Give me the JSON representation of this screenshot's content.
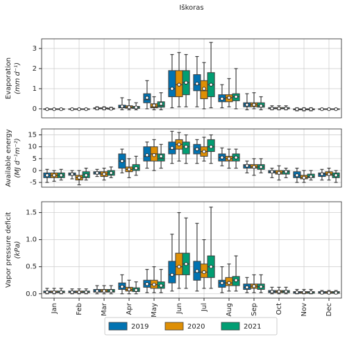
{
  "chart_data": [
    {
      "type": "box",
      "title": "Iškoras",
      "ylabel": "Evaporation",
      "ylabel_unit": "(mm d⁻¹)",
      "ylim": [
        -0.45,
        3.48
      ],
      "yticks": [
        0,
        1,
        2,
        3
      ],
      "grid": true,
      "series": [
        {
          "name": "2019",
          "color": "#0173b2",
          "whislo": [
            -0.05,
            -0.05,
            -0.05,
            -0.05,
            0,
            0.05,
            0.1,
            0.05,
            -0.05,
            -0.05,
            -0.1,
            -0.05
          ],
          "q1": [
            -0.03,
            -0.03,
            0,
            0.05,
            0.3,
            0.6,
            0.9,
            0.35,
            0.1,
            0,
            -0.05,
            -0.03
          ],
          "median": [
            -0.02,
            -0.02,
            0.02,
            0.1,
            0.45,
            1.0,
            1.2,
            0.5,
            0.2,
            0.02,
            -0.02,
            -0.02
          ],
          "q3": [
            0,
            0,
            0.05,
            0.18,
            0.75,
            1.9,
            1.7,
            0.7,
            0.3,
            0.06,
            0,
            0
          ],
          "whishi": [
            0.02,
            0.02,
            0.1,
            0.55,
            1.4,
            2.7,
            2.6,
            1.2,
            0.75,
            0.15,
            0.05,
            0.02
          ],
          "mean": [
            -0.02,
            -0.02,
            0.02,
            0.12,
            0.55,
            1.0,
            1.25,
            0.5,
            0.2,
            0.02,
            -0.02,
            -0.02
          ]
        },
        {
          "name": "2020",
          "color": "#de8f05",
          "whislo": [
            -0.05,
            -0.05,
            -0.05,
            -0.05,
            -0.05,
            0.1,
            0,
            0.1,
            0,
            -0.05,
            -0.1,
            -0.05
          ],
          "q1": [
            -0.03,
            -0.03,
            0,
            0.03,
            0.05,
            0.6,
            0.5,
            0.35,
            0.1,
            0,
            -0.05,
            -0.03
          ],
          "median": [
            -0.02,
            -0.02,
            0.02,
            0.08,
            0.1,
            1.2,
            0.9,
            0.55,
            0.2,
            0.02,
            -0.02,
            -0.02
          ],
          "q3": [
            0,
            0,
            0.05,
            0.15,
            0.25,
            1.9,
            1.4,
            0.7,
            0.3,
            0.06,
            0,
            0
          ],
          "whishi": [
            0.02,
            0.02,
            0.1,
            0.45,
            0.6,
            2.8,
            2.3,
            1.5,
            0.8,
            0.15,
            0.05,
            0.02
          ],
          "mean": [
            -0.02,
            -0.02,
            0.02,
            0.08,
            0.17,
            1.2,
            1.0,
            0.55,
            0.2,
            0.02,
            -0.02,
            -0.02
          ]
        },
        {
          "name": "2021",
          "color": "#029e73",
          "whislo": [
            -0.05,
            -0.05,
            -0.05,
            -0.05,
            -0.05,
            0.1,
            0.05,
            0,
            -0.05,
            -0.05,
            -0.1,
            -0.05
          ],
          "q1": [
            -0.03,
            -0.03,
            -0.02,
            0.02,
            0.08,
            0.7,
            0.6,
            0.4,
            0.08,
            0,
            -0.05,
            -0.03
          ],
          "median": [
            -0.02,
            -0.02,
            0,
            0.07,
            0.15,
            1.3,
            1.2,
            0.6,
            0.15,
            0.02,
            -0.02,
            -0.02
          ],
          "q3": [
            0,
            0,
            0.03,
            0.12,
            0.35,
            1.9,
            1.8,
            0.75,
            0.3,
            0.06,
            0,
            0
          ],
          "whishi": [
            0.02,
            0.02,
            0.08,
            0.3,
            0.8,
            2.7,
            3.3,
            2.0,
            0.6,
            0.15,
            0.05,
            0.02
          ],
          "mean": [
            -0.02,
            -0.02,
            0,
            0.07,
            0.25,
            1.3,
            1.2,
            0.6,
            0.15,
            0.02,
            -0.02,
            -0.02
          ]
        }
      ]
    },
    {
      "type": "box",
      "ylabel": "Available energy",
      "ylabel_unit": "(MJ d⁻¹m⁻²)",
      "ylim": [
        -7,
        17.5
      ],
      "yticks": [
        -5,
        0,
        5,
        10,
        15
      ],
      "grid": true,
      "series": [
        {
          "color": "#0173b2",
          "whislo": [
            -5,
            -3.5,
            -2.5,
            -1,
            1,
            3,
            3,
            2,
            -1,
            -3,
            -5,
            -4
          ],
          "q1": [
            -3,
            -2,
            -1.5,
            1,
            4,
            7,
            7,
            4,
            1,
            -1,
            -3,
            -2.5
          ],
          "median": [
            -2,
            -1.5,
            -1,
            4,
            6,
            9,
            9,
            5.5,
            2,
            -0.5,
            -2,
            -1.5
          ],
          "q3": [
            -1,
            -1,
            -0.5,
            7,
            10,
            12,
            11,
            7,
            2.5,
            0,
            -0.5,
            -1
          ],
          "whishi": [
            0.5,
            0,
            0.5,
            9,
            12,
            16.5,
            13,
            9.5,
            4,
            1,
            1,
            0.5
          ],
          "mean": [
            -2,
            -1.5,
            -1,
            4,
            6.5,
            9.5,
            9,
            5.5,
            2,
            -0.5,
            -2,
            -1.5
          ]
        },
        {
          "color": "#de8f05",
          "whislo": [
            -4.5,
            -6,
            -4,
            -3,
            0,
            4,
            4,
            1,
            -2,
            -4,
            -5,
            -4
          ],
          "q1": [
            -3,
            -4,
            -2.5,
            -0.5,
            4,
            9,
            6,
            4,
            1,
            -1.5,
            -3.5,
            -2
          ],
          "median": [
            -2,
            -3,
            -1.5,
            0.5,
            7,
            11,
            8,
            5,
            1.5,
            -1,
            -3,
            -1.5
          ],
          "q3": [
            -1,
            -2,
            -0.5,
            1.5,
            10,
            13,
            10,
            6,
            2.5,
            0,
            -2,
            -0.5
          ],
          "whishi": [
            0,
            0,
            1,
            5,
            13,
            16,
            14,
            9,
            5,
            2,
            0,
            1
          ],
          "mean": [
            -2,
            -3,
            -1.5,
            0.5,
            6.5,
            11,
            8,
            5,
            1.5,
            -1,
            -3,
            -1.5
          ]
        },
        {
          "color": "#029e73",
          "whislo": [
            -4,
            -4,
            -3,
            -2,
            1,
            3,
            3,
            1,
            -1,
            -3,
            -4,
            -5
          ],
          "q1": [
            -3,
            -3,
            -2,
            0,
            4,
            7,
            8,
            4,
            0.5,
            -1.5,
            -3,
            -3
          ],
          "median": [
            -2,
            -1.5,
            -1,
            1,
            5,
            10,
            10,
            5.5,
            1.5,
            -0.5,
            -2.5,
            -2
          ],
          "q3": [
            -1,
            -0.5,
            0,
            2.5,
            7,
            12,
            13,
            7,
            2.5,
            0,
            -1.5,
            -1
          ],
          "whishi": [
            0.5,
            1,
            1.5,
            6,
            11,
            15,
            15,
            9,
            5,
            1,
            0,
            0
          ],
          "mean": [
            -2,
            -2,
            -1,
            1,
            6,
            10,
            10,
            5.5,
            1.5,
            -0.5,
            -2.5,
            -2
          ]
        }
      ]
    },
    {
      "type": "box",
      "ylabel": "Vapor pressure deficit",
      "ylabel_unit": "(kPa)",
      "categories": [
        "Jan",
        "Feb",
        "Mar",
        "Apr",
        "May",
        "Jun",
        "Jul",
        "Aug",
        "Sep",
        "Oct",
        "Nov",
        "Dec"
      ],
      "ylim": [
        -0.08,
        1.7
      ],
      "yticks": [
        {
          "value": 0,
          "label": "0.0"
        },
        {
          "value": 0.5,
          "label": "0.5"
        },
        {
          "value": 1,
          "label": "1.0"
        },
        {
          "value": 1.5,
          "label": "1.5"
        }
      ],
      "grid": true,
      "series": [
        {
          "color": "#0173b2",
          "whislo": [
            0,
            0,
            0,
            0,
            0.02,
            0.05,
            0.05,
            0.02,
            0.02,
            0,
            0,
            0
          ],
          "q1": [
            0.02,
            0.02,
            0.03,
            0.08,
            0.12,
            0.2,
            0.25,
            0.12,
            0.08,
            0.02,
            0.01,
            0.01
          ],
          "median": [
            0.03,
            0.03,
            0.05,
            0.13,
            0.18,
            0.35,
            0.4,
            0.2,
            0.12,
            0.04,
            0.03,
            0.02
          ],
          "q3": [
            0.05,
            0.05,
            0.08,
            0.2,
            0.25,
            0.6,
            0.6,
            0.25,
            0.18,
            0.06,
            0.04,
            0.04
          ],
          "whishi": [
            0.1,
            0.09,
            0.15,
            0.35,
            0.45,
            1.1,
            1.3,
            0.5,
            0.3,
            0.12,
            0.08,
            0.06
          ],
          "mean": [
            0.03,
            0.03,
            0.05,
            0.13,
            0.18,
            0.35,
            0.42,
            0.2,
            0.12,
            0.04,
            0.03,
            0.02
          ]
        },
        {
          "color": "#de8f05",
          "whislo": [
            0,
            0,
            0,
            0,
            0.02,
            0.1,
            0.1,
            0.05,
            0.02,
            0,
            0,
            0
          ],
          "q1": [
            0.02,
            0.02,
            0.03,
            0.05,
            0.1,
            0.35,
            0.3,
            0.15,
            0.1,
            0.02,
            0.01,
            0.01
          ],
          "median": [
            0.03,
            0.03,
            0.05,
            0.08,
            0.17,
            0.5,
            0.4,
            0.2,
            0.14,
            0.04,
            0.03,
            0.02
          ],
          "q3": [
            0.05,
            0.05,
            0.08,
            0.12,
            0.25,
            0.75,
            0.55,
            0.3,
            0.18,
            0.06,
            0.04,
            0.04
          ],
          "whishi": [
            0.1,
            0.09,
            0.15,
            0.25,
            0.5,
            1.5,
            1.0,
            0.55,
            0.35,
            0.12,
            0.08,
            0.06
          ],
          "mean": [
            0.03,
            0.03,
            0.05,
            0.08,
            0.17,
            0.5,
            0.4,
            0.2,
            0.14,
            0.04,
            0.03,
            0.02
          ]
        },
        {
          "color": "#029e73",
          "whislo": [
            0,
            0,
            0,
            0,
            0.02,
            0.1,
            0.1,
            0.05,
            0.02,
            0,
            0,
            0
          ],
          "q1": [
            0.02,
            0.02,
            0.03,
            0.04,
            0.1,
            0.35,
            0.3,
            0.15,
            0.08,
            0.02,
            0.01,
            0.01
          ],
          "median": [
            0.03,
            0.03,
            0.05,
            0.07,
            0.15,
            0.55,
            0.5,
            0.25,
            0.13,
            0.04,
            0.03,
            0.02
          ],
          "q3": [
            0.05,
            0.05,
            0.08,
            0.11,
            0.22,
            0.75,
            0.7,
            0.32,
            0.18,
            0.06,
            0.04,
            0.04
          ],
          "whishi": [
            0.1,
            0.09,
            0.15,
            0.22,
            0.45,
            1.4,
            1.6,
            0.7,
            0.35,
            0.12,
            0.08,
            0.06
          ],
          "mean": [
            0.03,
            0.03,
            0.05,
            0.07,
            0.15,
            0.55,
            0.5,
            0.25,
            0.13,
            0.04,
            0.03,
            0.02
          ]
        }
      ]
    }
  ]
}
